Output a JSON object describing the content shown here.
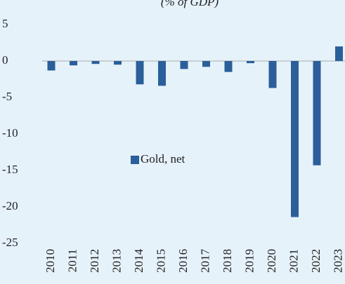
{
  "chart_data": {
    "type": "bar",
    "title": "(% of GDP)",
    "categories": [
      "2010",
      "2011",
      "2012",
      "2013",
      "2014",
      "2015",
      "2016",
      "2017",
      "2018",
      "2019",
      "2020",
      "2021",
      "2022",
      "2023"
    ],
    "series": [
      {
        "name": "Gold, net",
        "color": "#2a5f9a",
        "values": [
          -1.3,
          -0.6,
          -0.4,
          -0.5,
          -3.2,
          -3.4,
          -1.1,
          -0.8,
          -1.5,
          -0.3,
          -3.7,
          -21.4,
          -14.3,
          2.0
        ]
      }
    ],
    "ylim": [
      -25,
      5
    ],
    "yticks": [
      -25,
      -20,
      -15,
      -10,
      -5,
      0,
      5
    ],
    "grid": false,
    "legend": "center"
  }
}
